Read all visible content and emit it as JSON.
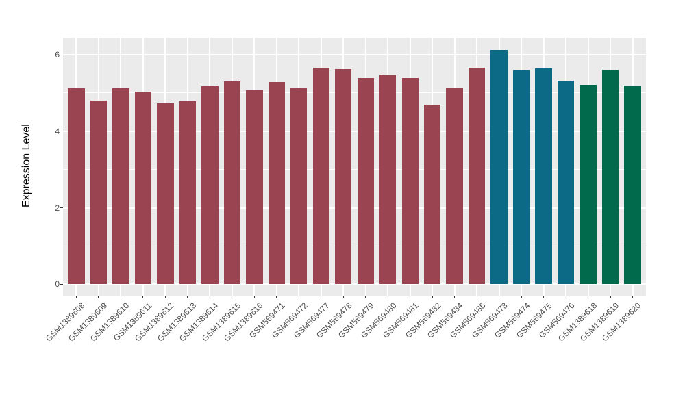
{
  "chart_data": {
    "type": "bar",
    "title": "",
    "xlabel": "",
    "ylabel": "Expression Level",
    "y_ticks": [
      0,
      2,
      4,
      6
    ],
    "y_minor_ticks": [
      1,
      3,
      5
    ],
    "y_display_range": [
      -0.3,
      6.45
    ],
    "grid": "on",
    "legend_position": "none",
    "panel_background": "#EBEBEB",
    "gridline_color": "#FFFFFF",
    "axis_text_color": "#4D4D4D",
    "palette": {
      "maroon": "#9A4452",
      "teal": "#0D6A87",
      "green": "#016A4C"
    },
    "categories": [
      "GSM1389608",
      "GSM1389609",
      "GSM1389610",
      "GSM1389611",
      "GSM1389612",
      "GSM1389613",
      "GSM1389614",
      "GSM1389615",
      "GSM1389616",
      "GSM569471",
      "GSM569472",
      "GSM569477",
      "GSM569478",
      "GSM569479",
      "GSM569480",
      "GSM569481",
      "GSM569482",
      "GSM569484",
      "GSM569485",
      "GSM569473",
      "GSM569474",
      "GSM569475",
      "GSM569476",
      "GSM1389618",
      "GSM1389619",
      "GSM1389620"
    ],
    "values": [
      5.12,
      4.81,
      5.12,
      5.04,
      4.73,
      4.79,
      5.17,
      5.31,
      5.07,
      5.29,
      5.12,
      5.66,
      5.62,
      5.4,
      5.49,
      5.39,
      4.7,
      5.14,
      5.67,
      6.12,
      5.6,
      5.64,
      5.33,
      5.22,
      5.61,
      5.19
    ],
    "bar_groups": [
      "maroon",
      "maroon",
      "maroon",
      "maroon",
      "maroon",
      "maroon",
      "maroon",
      "maroon",
      "maroon",
      "maroon",
      "maroon",
      "maroon",
      "maroon",
      "maroon",
      "maroon",
      "maroon",
      "maroon",
      "maroon",
      "maroon",
      "teal",
      "teal",
      "teal",
      "teal",
      "green",
      "green",
      "green"
    ]
  }
}
